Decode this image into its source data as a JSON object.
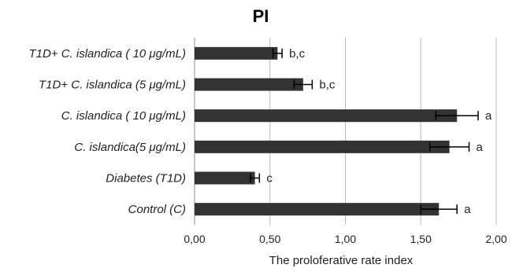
{
  "chart_data": {
    "type": "bar",
    "orientation": "horizontal",
    "title": "PI",
    "xlabel": "The proloferative rate index",
    "ylabel": "",
    "xlim": [
      0,
      2
    ],
    "grid": true,
    "legend": "none",
    "x_ticks": [
      "0,00",
      "0,50",
      "1,00",
      "1,50",
      "2,00"
    ],
    "x_tick_values": [
      0,
      0.5,
      1.0,
      1.5,
      2.0
    ],
    "categories": [
      "T1D+ C. islandica ( 10 μg/mL)",
      "T1D+ C. islandica (5 μg/mL)",
      "C. islandica ( 10 μg/mL)",
      "C. islandica(5 μg/mL)",
      "Diabetes (T1D)",
      "Control (C)"
    ],
    "values": [
      0.55,
      0.72,
      1.74,
      1.69,
      0.4,
      1.62
    ],
    "errors": [
      0.03,
      0.06,
      0.14,
      0.13,
      0.03,
      0.12
    ],
    "data_labels": [
      "b,c",
      "b,c",
      "a",
      "a",
      "c",
      "a"
    ],
    "bar_color": "#333333",
    "grid_color": "#b8b8b8"
  }
}
